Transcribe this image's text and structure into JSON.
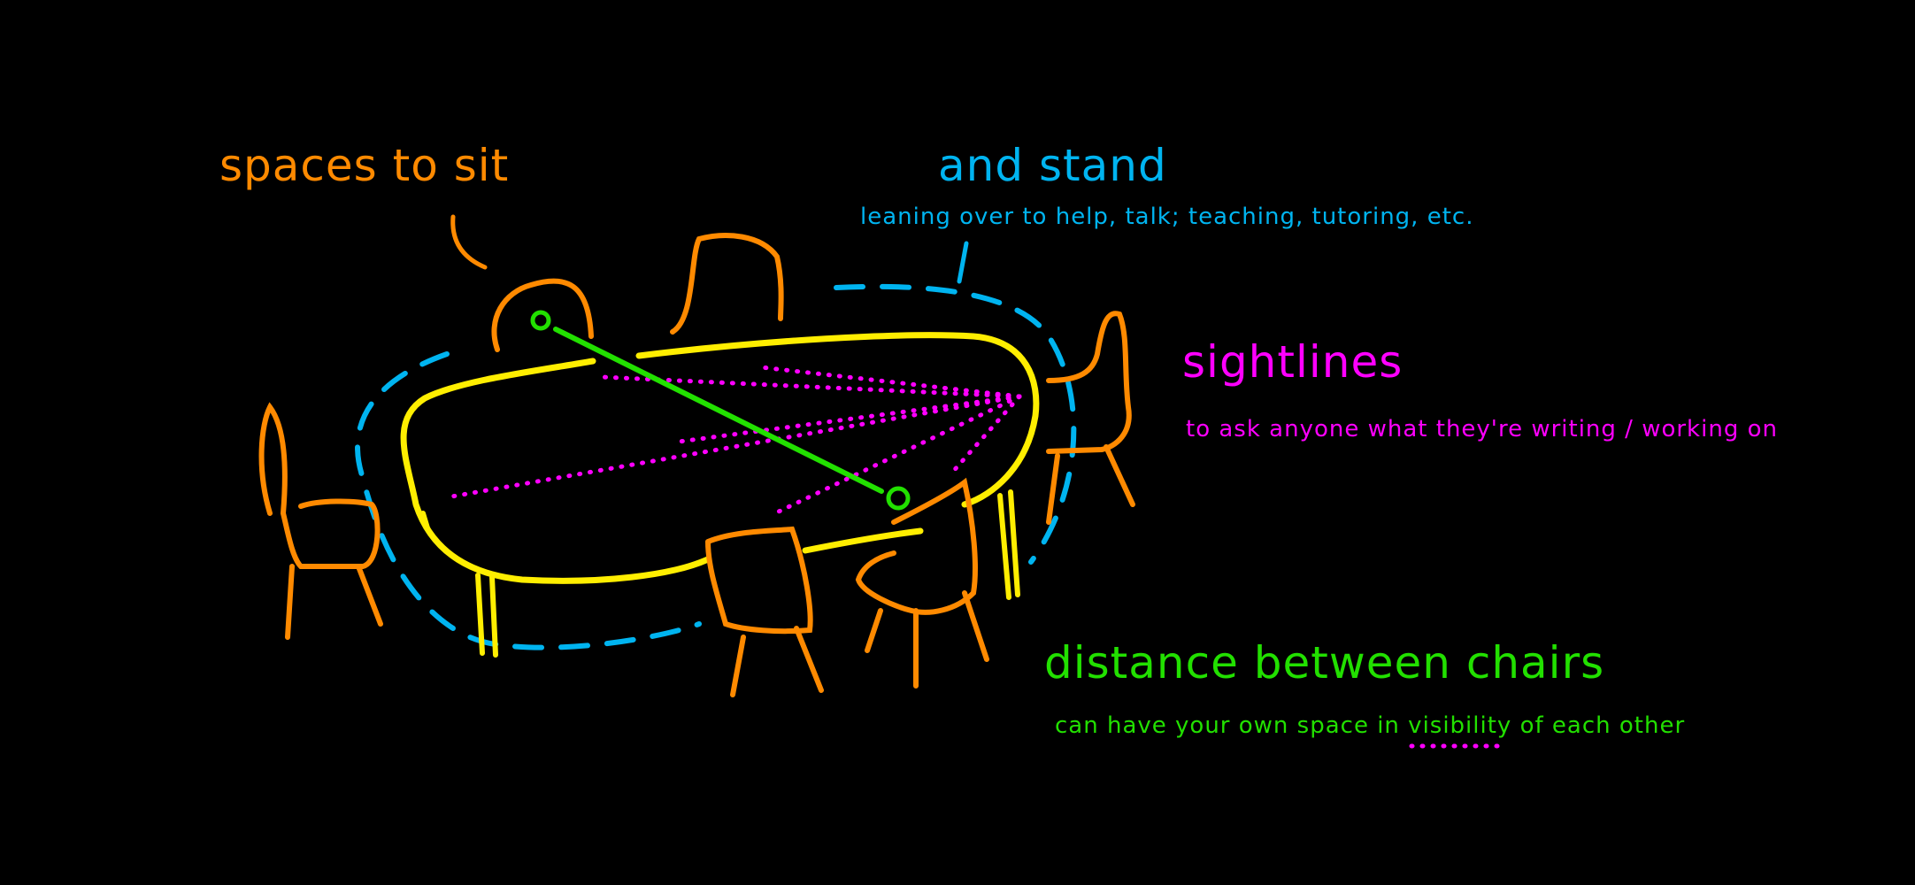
{
  "colors": {
    "background": "#000000",
    "chairs": "#ff8a00",
    "standing_space": "#00b4f0",
    "table": "#ffee00",
    "sightlines": "#ff00ff",
    "distance": "#22e000"
  },
  "labels": {
    "spaces_to_sit": "spaces to sit",
    "and_stand": "and stand",
    "and_stand_detail": "leaning over to help, talk; teaching, tutoring, etc.",
    "sightlines": "sightlines",
    "sightlines_detail": "to ask anyone what they're writing / working on",
    "distance": "distance between chairs",
    "distance_detail": "can have your own space in visibility of each other"
  }
}
